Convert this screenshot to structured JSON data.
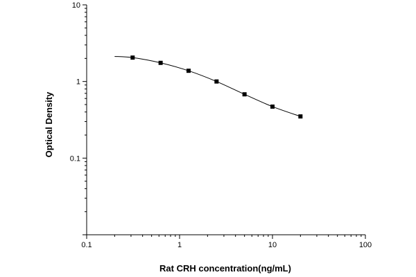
{
  "chart_data": {
    "type": "scatter",
    "title": "",
    "xlabel": "Rat CRH concentration(ng/mL)",
    "ylabel": "Optical Density",
    "x_scale": "log",
    "y_scale": "log",
    "xlim": [
      0.1,
      100
    ],
    "ylim": [
      0.01,
      10
    ],
    "x_ticks": [
      {
        "value": 0.1,
        "label": "0.1"
      },
      {
        "value": 1,
        "label": "1"
      },
      {
        "value": 10,
        "label": "10"
      },
      {
        "value": 100,
        "label": "100"
      }
    ],
    "y_ticks": [
      {
        "value": 10,
        "label": "10"
      },
      {
        "value": 1,
        "label": "1"
      },
      {
        "value": 0.1,
        "label": "0.1"
      }
    ],
    "grid": false,
    "series": [
      {
        "x": [
          0.3125,
          0.625,
          1.25,
          2.5,
          5,
          10,
          20
        ],
        "y": [
          2.05,
          1.75,
          1.38,
          1.0,
          0.68,
          0.47,
          0.35
        ],
        "marker": "square",
        "color": "#000000"
      }
    ],
    "fit_curve": {
      "type": "4-parameter logistic",
      "x_range": [
        0.2,
        20
      ],
      "color": "#000000"
    }
  }
}
